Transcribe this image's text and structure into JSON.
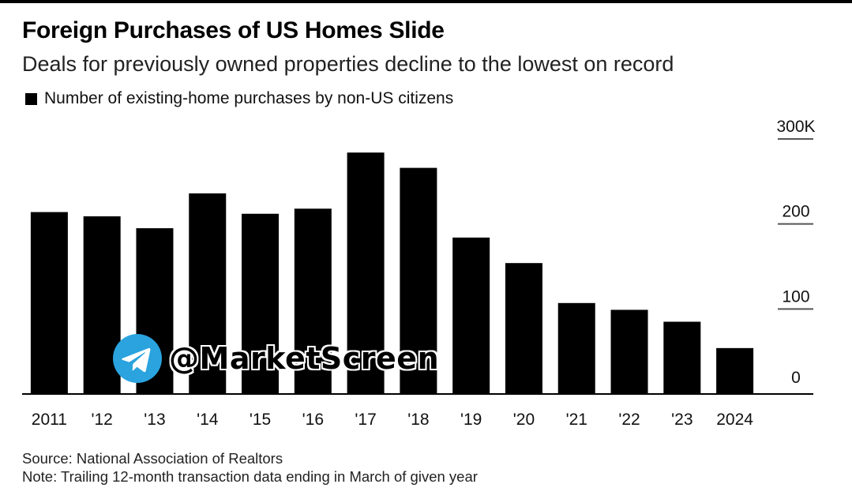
{
  "header": {
    "title": "Foreign Purchases of US Homes Slide",
    "subtitle": "Deals for previously owned properties decline to the lowest on record"
  },
  "legend": {
    "label": "Number of existing-home purchases by non-US citizens"
  },
  "footer": {
    "source": "Source: National Association of Realtors",
    "note": "Note: Trailing 12-month transaction data ending in March of given year"
  },
  "watermark": {
    "text": "@MarketScreen",
    "icon": "telegram-icon"
  },
  "colors": {
    "bar": "#000000",
    "axis": "#000000",
    "gridline": "#555555",
    "watermark_icon": "#2AA3DE"
  },
  "chart_data": {
    "type": "bar",
    "categories": [
      "2011",
      "'12",
      "'13",
      "'14",
      "'15",
      "'16",
      "'17",
      "'18",
      "'19",
      "'20",
      "'21",
      "'22",
      "'23",
      "2024"
    ],
    "series": [
      {
        "name": "Number of existing-home purchases by non-US citizens",
        "values": [
          214,
          209,
          195,
          236,
          212,
          218,
          284,
          266,
          184,
          154,
          107,
          99,
          85,
          54
        ]
      }
    ],
    "ylim": [
      0,
      300
    ],
    "yticks": [
      0,
      100,
      200,
      300
    ],
    "ytick_labels": [
      "0",
      "100",
      "200",
      "300K"
    ],
    "y_axis_position": "right",
    "grid": false,
    "legend_position": "top-left"
  }
}
